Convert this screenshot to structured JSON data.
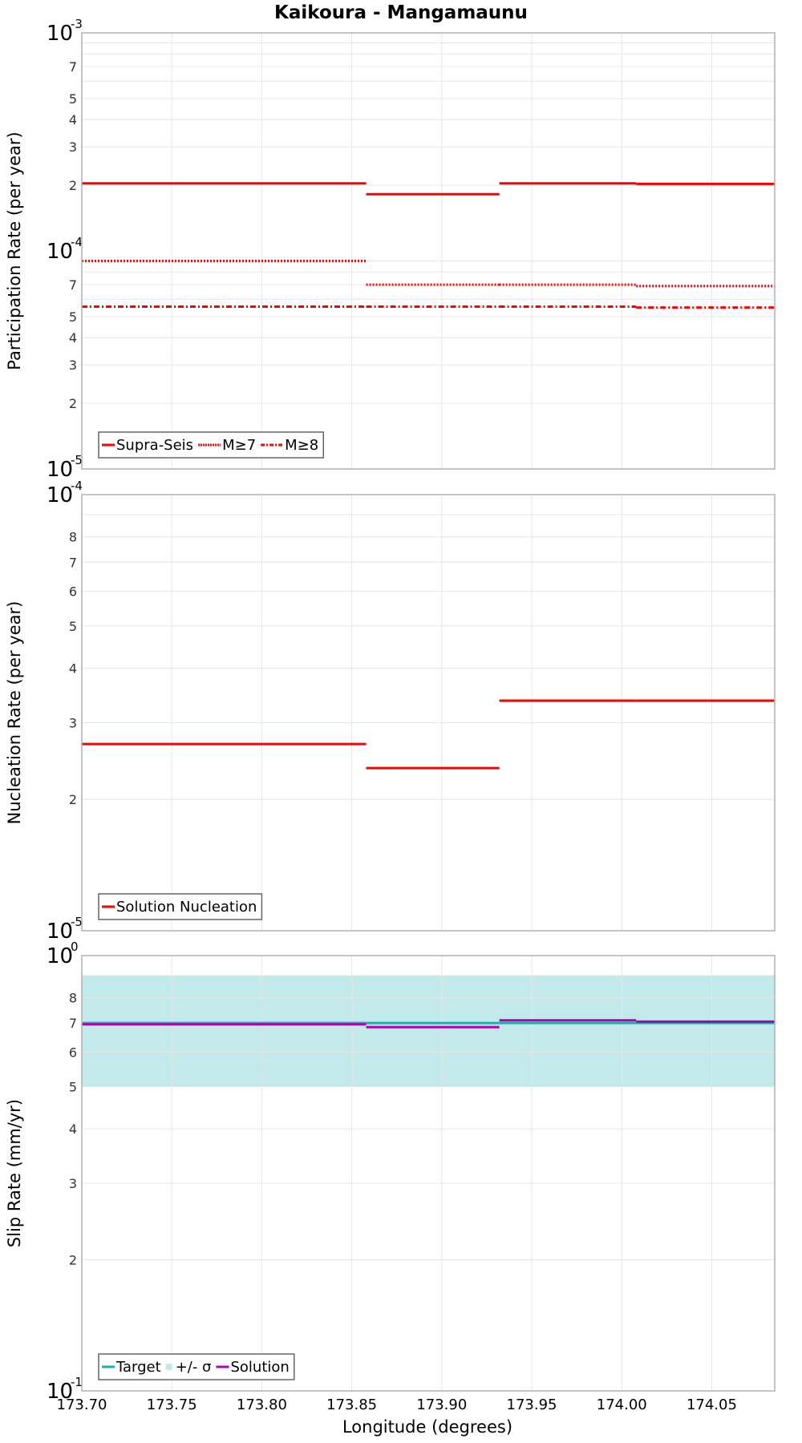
{
  "chart_data": {
    "title": "Kaikoura - Mangamaunu",
    "xlabel": "Longitude (degrees)",
    "xlim": [
      173.7,
      174.085
    ],
    "x_ticks": [
      "173.70",
      "173.75",
      "173.80",
      "173.85",
      "173.90",
      "173.95",
      "174.00",
      "174.05"
    ],
    "segment_edges": [
      173.7,
      173.858,
      173.932,
      174.008,
      174.085
    ],
    "panels": [
      {
        "id": "participation",
        "type": "line",
        "yscale": "log",
        "ylabel": "Participation Rate (per year)",
        "ylim": [
          1e-05,
          0.001
        ],
        "decade_labels": [
          {
            "base": "10",
            "exp": "-3",
            "value": 0.001
          },
          {
            "base": "10",
            "exp": "-4",
            "value": 0.0001
          },
          {
            "base": "10",
            "exp": "-5",
            "value": 1e-05
          }
        ],
        "minor_tick_labels": [
          "7",
          "5",
          "4",
          "3",
          "2"
        ],
        "grid": true,
        "legend": {
          "position": "lower-left",
          "entries": [
            "Supra-Seis",
            "M≥7",
            "M≥8"
          ]
        },
        "series": [
          {
            "name": "Supra-Seis",
            "style": "solid",
            "color": "#ff0000",
            "values": [
              0.000204,
              0.000182,
              0.000204,
              0.000203
            ]
          },
          {
            "name": "M≥7",
            "style": "dotted",
            "color": "#ff0000",
            "values": [
              9e-05,
              7e-05,
              7e-05,
              6.9e-05
            ]
          },
          {
            "name": "M≥8",
            "style": "dashdot",
            "color": "#ff0000",
            "values": [
              5.55e-05,
              5.55e-05,
              5.55e-05,
              5.5e-05
            ]
          }
        ]
      },
      {
        "id": "nucleation",
        "type": "line",
        "yscale": "log",
        "ylabel": "Nucleation Rate (per year)",
        "ylim": [
          1e-05,
          0.0001
        ],
        "decade_labels": [
          {
            "base": "10",
            "exp": "-4",
            "value": 0.0001
          },
          {
            "base": "10",
            "exp": "-5",
            "value": 1e-05
          }
        ],
        "minor_tick_labels": [
          "8",
          "7",
          "6",
          "5",
          "4",
          "3",
          "2"
        ],
        "grid": true,
        "legend": {
          "position": "lower-left",
          "entries": [
            "Solution Nucleation"
          ]
        },
        "series": [
          {
            "name": "Solution Nucleation",
            "style": "solid",
            "color": "#ff0000",
            "values": [
              2.68e-05,
              2.36e-05,
              3.37e-05,
              3.37e-05
            ]
          }
        ]
      },
      {
        "id": "slip",
        "type": "line",
        "yscale": "log",
        "ylabel": "Slip Rate (mm/yr)",
        "ylim": [
          0.1,
          1.0
        ],
        "decade_labels": [
          {
            "base": "10",
            "exp": "0",
            "value": 1.0
          },
          {
            "base": "10",
            "exp": "-1",
            "value": 0.1
          }
        ],
        "minor_tick_labels": [
          "8",
          "7",
          "6",
          "5",
          "4",
          "3",
          "2"
        ],
        "grid": true,
        "legend": {
          "position": "lower-left",
          "entries": [
            "Target",
            "+/- σ",
            "Solution"
          ]
        },
        "band": {
          "name": "+/- σ",
          "color": "#c2eaea",
          "lower": 0.5,
          "upper": 0.9
        },
        "series": [
          {
            "name": "Target",
            "style": "solid",
            "color": "#13b3a8",
            "values": [
              0.7,
              0.7,
              0.7,
              0.7
            ]
          },
          {
            "name": "Solution",
            "style": "solid",
            "color": "#b000b8",
            "values": [
              0.695,
              0.685,
              0.71,
              0.705
            ]
          }
        ]
      }
    ]
  }
}
